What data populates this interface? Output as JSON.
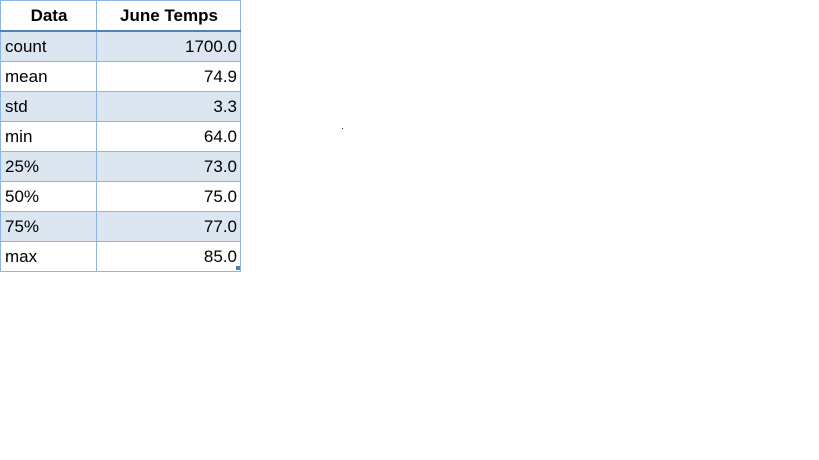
{
  "table": {
    "headers": [
      "Data",
      "June Temps"
    ],
    "rows": [
      {
        "label": "count",
        "value": "1700.0"
      },
      {
        "label": "mean",
        "value": "74.9"
      },
      {
        "label": "std",
        "value": "3.3"
      },
      {
        "label": "min",
        "value": "64.0"
      },
      {
        "label": "25%",
        "value": "73.0"
      },
      {
        "label": "50%",
        "value": "75.0"
      },
      {
        "label": "75%",
        "value": "77.0"
      },
      {
        "label": "max",
        "value": "85.0"
      }
    ]
  },
  "colors": {
    "band_fill": "#dce6f1",
    "border": "#8eb4e3",
    "header_rule": "#4f81bd"
  }
}
